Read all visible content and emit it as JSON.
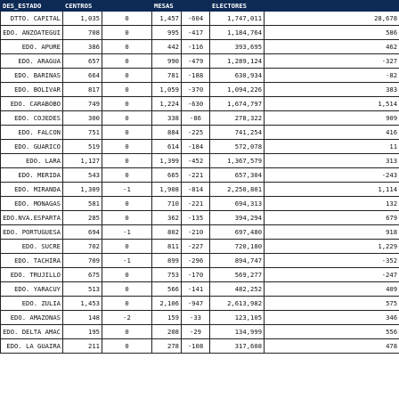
{
  "header": {
    "col_estado": "DES_ESTADO",
    "col_centros": "CENTROS",
    "col_mesas": "MESAS",
    "col_electores": "ELECTORES"
  },
  "rows": [
    {
      "estado": "DTTO. CAPITAL",
      "centros": "1,035",
      "c2": "0",
      "mesas": "1,457",
      "d_mesas": "-604",
      "electores": "1,747,011",
      "d_electores": "28,678"
    },
    {
      "estado": "EDO. ANZOATEGUI",
      "centros": "708",
      "c2": "0",
      "mesas": "995",
      "d_mesas": "-417",
      "electores": "1,184,764",
      "d_electores": "586"
    },
    {
      "estado": "EDO. APURE",
      "centros": "386",
      "c2": "0",
      "mesas": "442",
      "d_mesas": "-116",
      "electores": "393,695",
      "d_electores": "462"
    },
    {
      "estado": "EDO. ARAGUA",
      "centros": "657",
      "c2": "0",
      "mesas": "990",
      "d_mesas": "-479",
      "electores": "1,289,124",
      "d_electores": "-327"
    },
    {
      "estado": "EDO. BARINAS",
      "centros": "664",
      "c2": "0",
      "mesas": "781",
      "d_mesas": "-188",
      "electores": "630,934",
      "d_electores": "-82"
    },
    {
      "estado": "EDO. BOLIVAR",
      "centros": "817",
      "c2": "0",
      "mesas": "1,059",
      "d_mesas": "-370",
      "electores": "1,094,226",
      "d_electores": "383"
    },
    {
      "estado": "EDO. CARABOBO",
      "centros": "749",
      "c2": "0",
      "mesas": "1,224",
      "d_mesas": "-630",
      "electores": "1,674,797",
      "d_electores": "1,514"
    },
    {
      "estado": "EDO. COJEDES",
      "centros": "300",
      "c2": "0",
      "mesas": "338",
      "d_mesas": "-86",
      "electores": "278,322",
      "d_electores": "909"
    },
    {
      "estado": "EDO. FALCON",
      "centros": "751",
      "c2": "0",
      "mesas": "884",
      "d_mesas": "-225",
      "electores": "741,254",
      "d_electores": "416"
    },
    {
      "estado": "EDO. GUARICO",
      "centros": "519",
      "c2": "0",
      "mesas": "614",
      "d_mesas": "-184",
      "electores": "572,078",
      "d_electores": "11"
    },
    {
      "estado": "EDO. LARA",
      "centros": "1,127",
      "c2": "0",
      "mesas": "1,399",
      "d_mesas": "-452",
      "electores": "1,367,579",
      "d_electores": "313"
    },
    {
      "estado": "EDO. MERIDA",
      "centros": "543",
      "c2": "0",
      "mesas": "665",
      "d_mesas": "-221",
      "electores": "657,304",
      "d_electores": "-243"
    },
    {
      "estado": "EDO. MIRANDA",
      "centros": "1,309",
      "c2": "-1",
      "mesas": "1,908",
      "d_mesas": "-814",
      "electores": "2,250,801",
      "d_electores": "1,114"
    },
    {
      "estado": "EDO. MONAGAS",
      "centros": "581",
      "c2": "0",
      "mesas": "710",
      "d_mesas": "-221",
      "electores": "694,313",
      "d_electores": "132"
    },
    {
      "estado": "EDO.NVA.ESPARTA",
      "centros": "285",
      "c2": "0",
      "mesas": "362",
      "d_mesas": "-135",
      "electores": "394,294",
      "d_electores": "679"
    },
    {
      "estado": "EDO. PORTUGUESA",
      "centros": "694",
      "c2": "-1",
      "mesas": "802",
      "d_mesas": "-210",
      "electores": "697,480",
      "d_electores": "918"
    },
    {
      "estado": "EDO. SUCRE",
      "centros": "702",
      "c2": "0",
      "mesas": "811",
      "d_mesas": "-227",
      "electores": "720,180",
      "d_electores": "1,229"
    },
    {
      "estado": "EDO. TACHIRA",
      "centros": "709",
      "c2": "-1",
      "mesas": "899",
      "d_mesas": "-296",
      "electores": "894,747",
      "d_electores": "-352"
    },
    {
      "estado": "EDO. TRUJILLO",
      "centros": "675",
      "c2": "0",
      "mesas": "753",
      "d_mesas": "-170",
      "electores": "569,277",
      "d_electores": "-247"
    },
    {
      "estado": "EDO. YARACUY",
      "centros": "513",
      "c2": "0",
      "mesas": "566",
      "d_mesas": "-141",
      "electores": "482,252",
      "d_electores": "409"
    },
    {
      "estado": "EDO. ZULIA",
      "centros": "1,453",
      "c2": "0",
      "mesas": "2,106",
      "d_mesas": "-947",
      "electores": "2,613,982",
      "d_electores": "575"
    },
    {
      "estado": "EDO. AMAZONAS",
      "centros": "148",
      "c2": "-2",
      "mesas": "159",
      "d_mesas": "-33",
      "electores": "123,105",
      "d_electores": "346"
    },
    {
      "estado": "EDO. DELTA AMAC",
      "centros": "195",
      "c2": "0",
      "mesas": "208",
      "d_mesas": "-29",
      "electores": "134,999",
      "d_electores": "556"
    },
    {
      "estado": "EDO. LA GUAIRA",
      "centros": "211",
      "c2": "0",
      "mesas": "278",
      "d_mesas": "-108",
      "electores": "317,608",
      "d_electores": "478"
    }
  ]
}
